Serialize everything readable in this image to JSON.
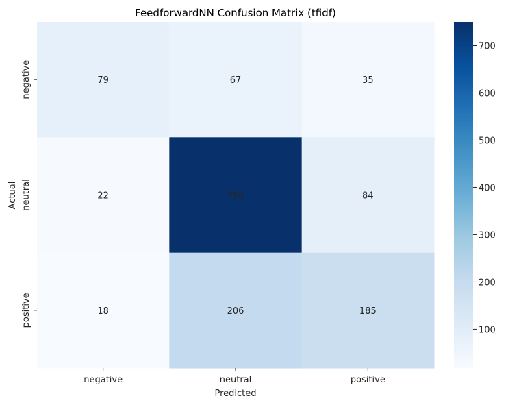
{
  "chart_data": {
    "type": "heatmap",
    "title": "FeedforwardNN Confusion Matrix (tfidf)",
    "xlabel": "Predicted",
    "ylabel": "Actual",
    "x_categories": [
      "negative",
      "neutral",
      "positive"
    ],
    "y_categories": [
      "negative",
      "neutral",
      "positive"
    ],
    "values": [
      [
        79,
        67,
        35
      ],
      [
        22,
        750,
        84
      ],
      [
        18,
        206,
        185
      ]
    ],
    "colormap": "Blues",
    "color_low": "#f7fbff",
    "color_high": "#08306b",
    "colorbar": {
      "range": [
        18,
        750
      ],
      "ticks": [
        100,
        200,
        300,
        400,
        500,
        600,
        700
      ]
    },
    "grid": false
  }
}
